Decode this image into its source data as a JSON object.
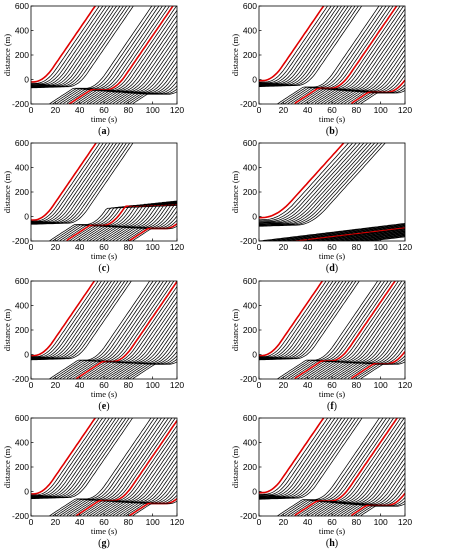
{
  "figure": {
    "panels": [
      {
        "id": "a",
        "label_prefix": "(",
        "label_letter": "a",
        "label_suffix": ")"
      },
      {
        "id": "b",
        "label_prefix": "(",
        "label_letter": "b",
        "label_suffix": ")"
      },
      {
        "id": "c",
        "label_prefix": "(",
        "label_letter": "c",
        "label_suffix": ")"
      },
      {
        "id": "d",
        "label_prefix": "(",
        "label_letter": "d",
        "label_suffix": ")"
      },
      {
        "id": "e",
        "label_prefix": "(",
        "label_letter": "e",
        "label_suffix": ")"
      },
      {
        "id": "f",
        "label_prefix": "(",
        "label_letter": "f",
        "label_suffix": ")"
      },
      {
        "id": "g",
        "label_prefix": "(",
        "label_letter": "g",
        "label_suffix": ")"
      },
      {
        "id": "h",
        "label_prefix": "(",
        "label_letter": "h",
        "label_suffix": ")"
      }
    ]
  },
  "chart_data": [
    {
      "panel": "a",
      "type": "line",
      "xlabel": "time (s)",
      "ylabel": "distance (m)",
      "xlim": [
        0,
        120
      ],
      "ylim": [
        -200,
        600
      ],
      "xticks": [
        "0",
        "20",
        "40",
        "60",
        "80",
        "100",
        "120"
      ],
      "yticks": [
        "-200",
        "0",
        "200",
        "400",
        "600"
      ],
      "colors": {
        "vehicles": "#000000",
        "highlighted": "#e00000"
      },
      "pattern": {
        "queue_start": -20,
        "queue_end": -120,
        "vehicles": 38,
        "release_start": 2,
        "release_step": 2.6,
        "speed": 14.5,
        "accel": 0.9,
        "red_index": [
          0,
          18
        ]
      }
    },
    {
      "panel": "b",
      "type": "line",
      "xlabel": "time (s)",
      "ylabel": "distance (m)",
      "xlim": [
        0,
        120
      ],
      "ylim": [
        -200,
        600
      ],
      "xticks": [
        "0",
        "20",
        "40",
        "60",
        "80",
        "100",
        "120"
      ],
      "yticks": [
        "-200",
        "0",
        "200",
        "400",
        "600"
      ],
      "colors": {
        "vehicles": "#000000",
        "highlighted": "#e00000"
      },
      "pattern": {
        "queue_start": -10,
        "queue_end": -110,
        "vehicles": 38,
        "release_start": 3,
        "release_step": 2.6,
        "speed": 14.5,
        "accel": 0.9,
        "red_index": [
          0,
          17,
          34
        ]
      }
    },
    {
      "panel": "c",
      "type": "line",
      "xlabel": "time (s)",
      "ylabel": "distance (m)",
      "xlim": [
        0,
        120
      ],
      "ylim": [
        -200,
        600
      ],
      "xticks": [
        "0",
        "20",
        "40",
        "60",
        "80",
        "100",
        "120"
      ],
      "yticks": [
        "-200",
        "0",
        "200",
        "400",
        "600"
      ],
      "colors": {
        "vehicles": "#000000",
        "highlighted": "#e00000"
      },
      "pattern": {
        "queue_start": -30,
        "queue_end": -100,
        "vehicles": 38,
        "release_start": 2,
        "release_step": 2.6,
        "speed": 14.5,
        "accel": 0.9,
        "red_index": [
          0,
          17,
          36
        ],
        "platoon": true
      }
    },
    {
      "panel": "d",
      "type": "line",
      "xlabel": "time (s)",
      "ylabel": "distance (m)",
      "xlim": [
        0,
        120
      ],
      "ylim": [
        -200,
        600
      ],
      "xticks": [
        "0",
        "20",
        "40",
        "60",
        "80",
        "100",
        "120"
      ],
      "yticks": [
        "-200",
        "0",
        "200",
        "400",
        "600"
      ],
      "colors": {
        "vehicles": "#000000",
        "highlighted": "#e00000"
      },
      "pattern": {
        "queue_start": -10,
        "queue_end": -150,
        "vehicles": 36,
        "release_start": 2,
        "release_step": 2.6,
        "speed": 11,
        "accel": 0.45,
        "red_index": [
          0,
          20
        ],
        "slow": true
      }
    },
    {
      "panel": "e",
      "type": "line",
      "xlabel": "time (s)",
      "ylabel": "distance (m)",
      "xlim": [
        0,
        120
      ],
      "ylim": [
        -200,
        600
      ],
      "xticks": [
        "0",
        "20",
        "40",
        "60",
        "80",
        "100",
        "120"
      ],
      "yticks": [
        "-200",
        "0",
        "200",
        "400",
        "600"
      ],
      "colors": {
        "vehicles": "#000000",
        "highlighted": "#e00000"
      },
      "pattern": {
        "queue_start": -10,
        "queue_end": -80,
        "vehicles": 38,
        "release_start": 2,
        "release_step": 2.6,
        "speed": 14.5,
        "accel": 0.9,
        "red_index": [
          0,
          20
        ]
      }
    },
    {
      "panel": "f",
      "type": "line",
      "xlabel": "time (s)",
      "ylabel": "distance (m)",
      "xlim": [
        0,
        120
      ],
      "ylim": [
        -200,
        600
      ],
      "xticks": [
        "0",
        "20",
        "40",
        "60",
        "80",
        "100",
        "120"
      ],
      "yticks": [
        "-200",
        "0",
        "200",
        "400",
        "600"
      ],
      "colors": {
        "vehicles": "#000000",
        "highlighted": "#e00000"
      },
      "pattern": {
        "queue_start": -10,
        "queue_end": -80,
        "vehicles": 38,
        "release_start": 2,
        "release_step": 2.6,
        "speed": 14.5,
        "accel": 0.9,
        "red_index": [
          0,
          17,
          34
        ]
      }
    },
    {
      "panel": "g",
      "type": "line",
      "xlabel": "time (s)",
      "ylabel": "distance (m)",
      "xlim": [
        0,
        120
      ],
      "ylim": [
        -200,
        600
      ],
      "xticks": [
        "0",
        "20",
        "40",
        "60",
        "80",
        "100",
        "120"
      ],
      "yticks": [
        "-200",
        "0",
        "200",
        "400",
        "600"
      ],
      "colors": {
        "vehicles": "#000000",
        "highlighted": "#e00000"
      },
      "pattern": {
        "queue_start": -20,
        "queue_end": -100,
        "vehicles": 38,
        "release_start": 2,
        "release_step": 2.6,
        "speed": 14.5,
        "accel": 0.9,
        "red_index": [
          0,
          20,
          36
        ]
      }
    },
    {
      "panel": "h",
      "type": "line",
      "xlabel": "time (s)",
      "ylabel": "distance (m)",
      "xlim": [
        0,
        120
      ],
      "ylim": [
        -200,
        600
      ],
      "xticks": [
        "0",
        "20",
        "40",
        "60",
        "80",
        "100",
        "120"
      ],
      "yticks": [
        "-200",
        "0",
        "200",
        "400",
        "600"
      ],
      "colors": {
        "vehicles": "#000000",
        "highlighted": "#e00000"
      },
      "pattern": {
        "queue_start": -10,
        "queue_end": -120,
        "vehicles": 38,
        "release_start": 3,
        "release_step": 2.6,
        "speed": 14.5,
        "accel": 0.9,
        "red_index": [
          0,
          17,
          34
        ]
      }
    }
  ]
}
